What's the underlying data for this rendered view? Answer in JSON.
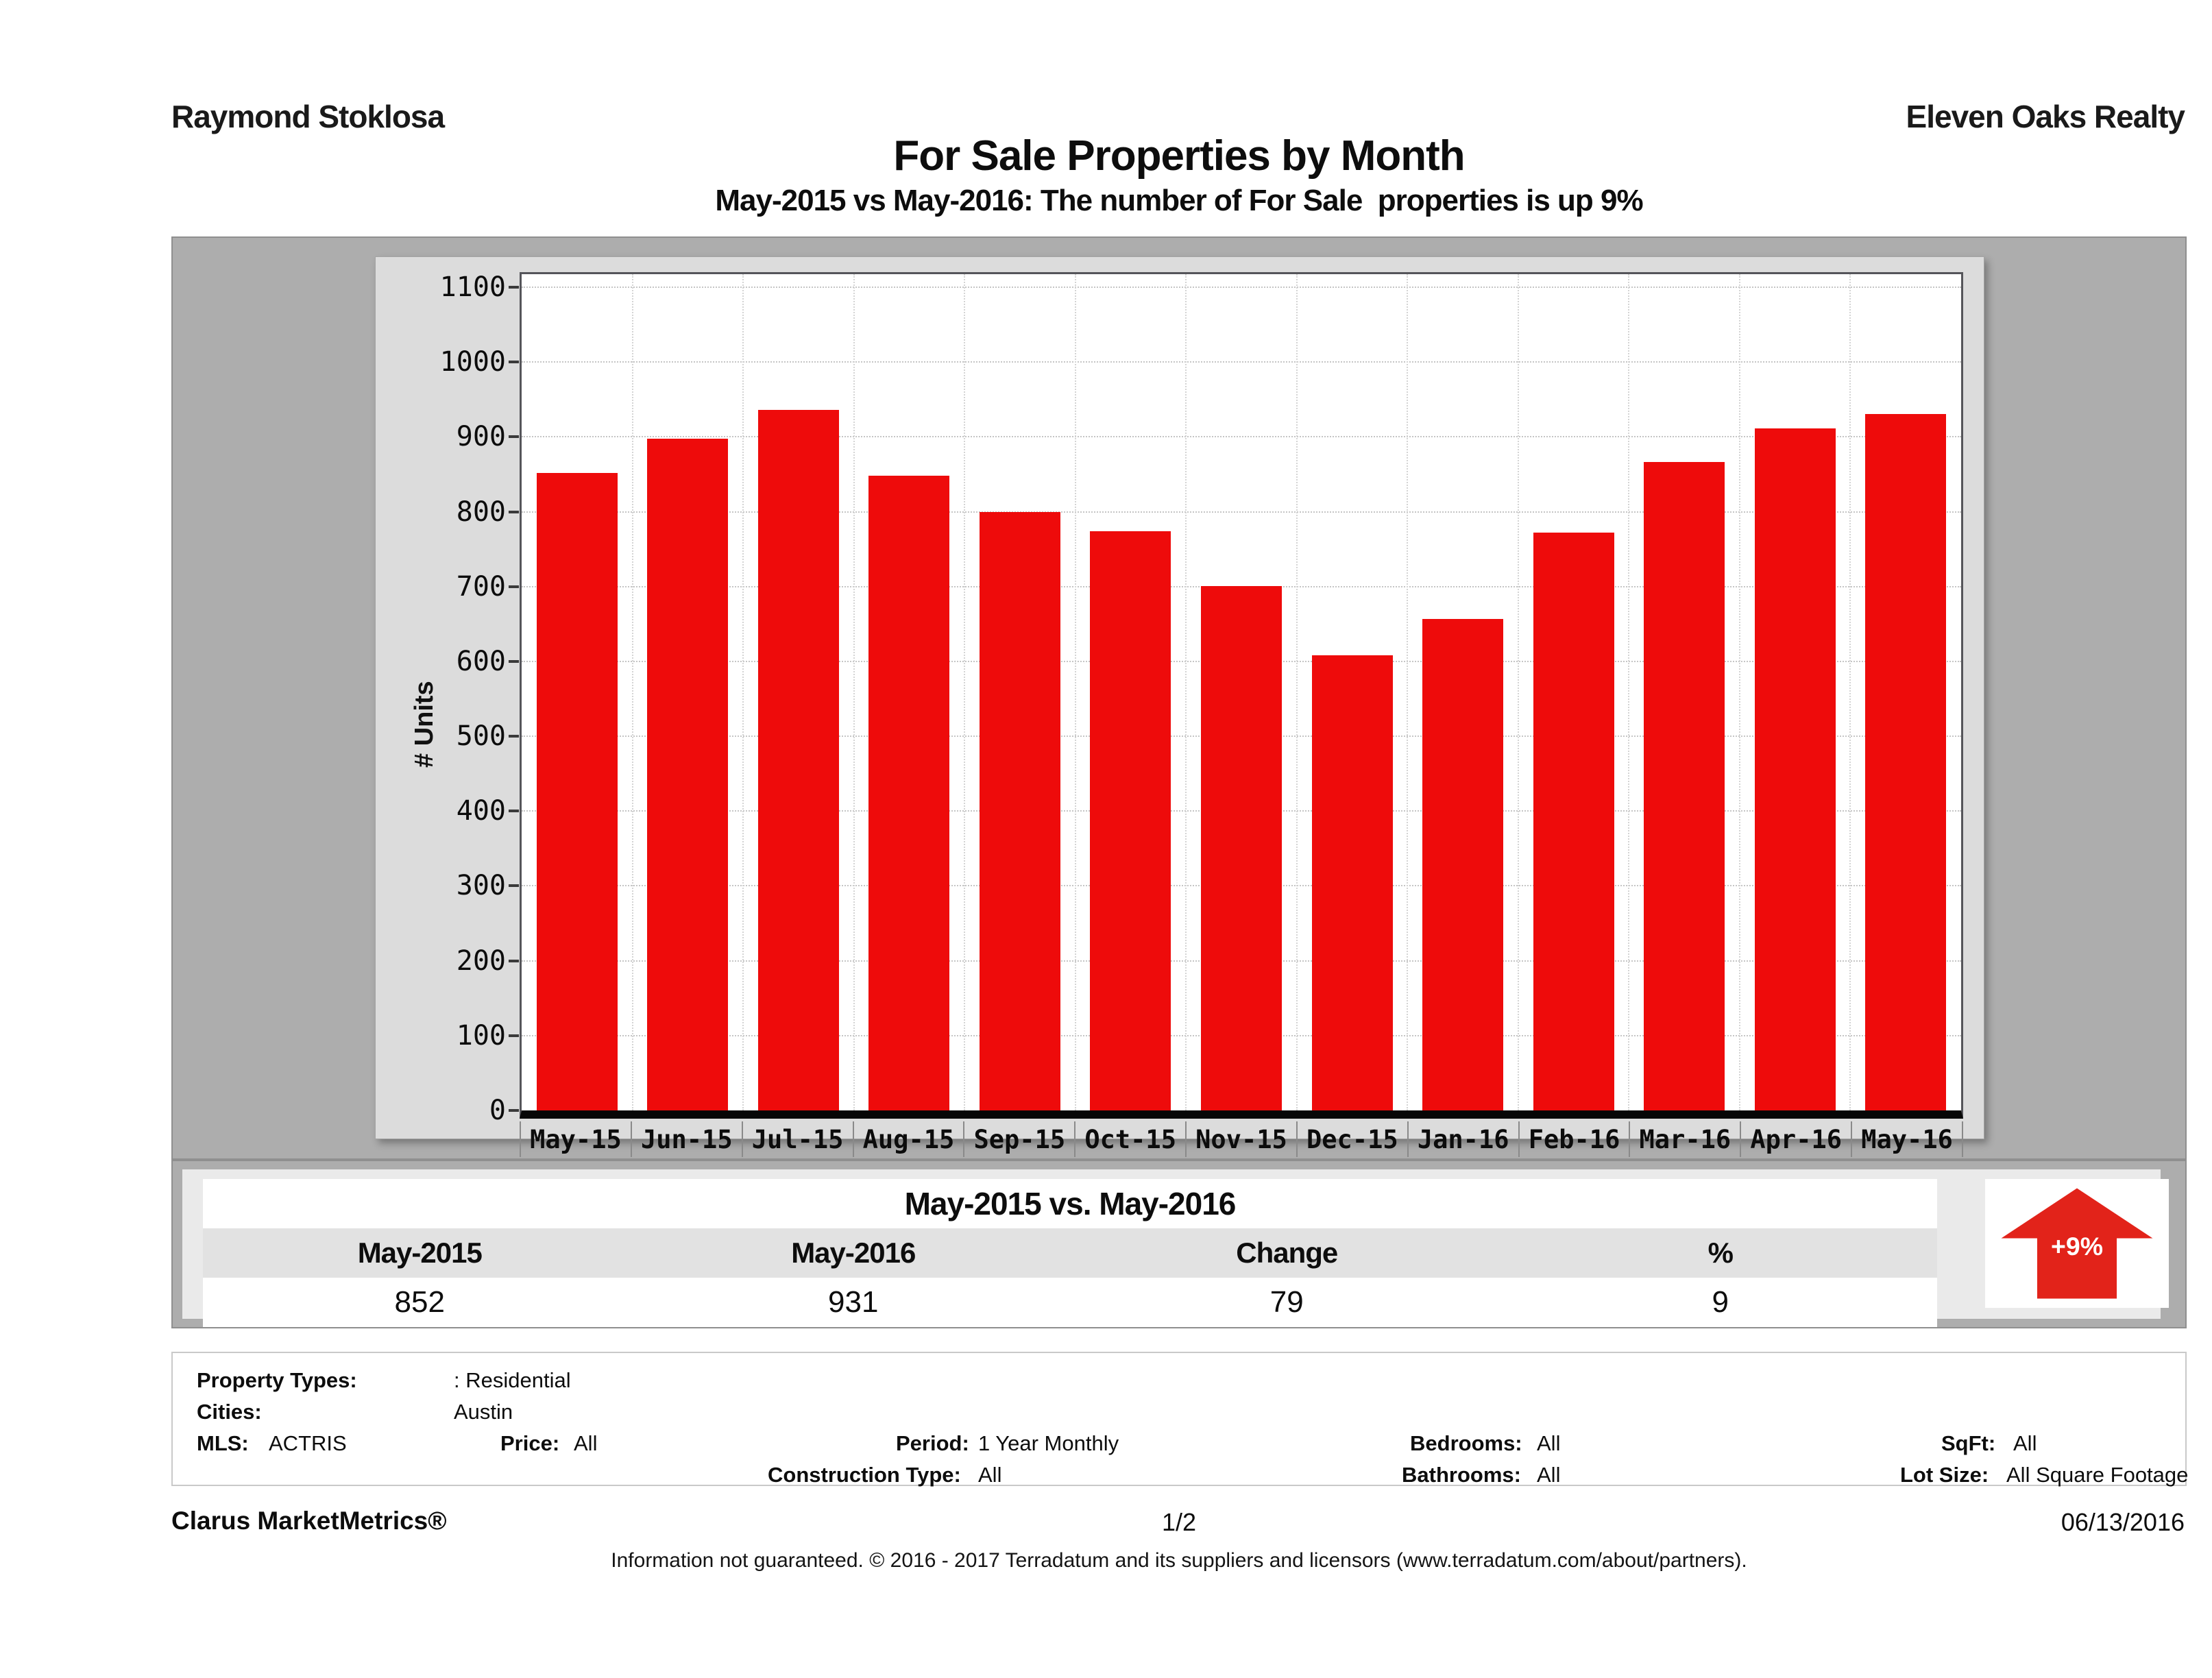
{
  "header": {
    "agent_name": "Raymond Stoklosa",
    "company_name": "Eleven Oaks Realty",
    "title": "For Sale Properties by Month",
    "subtitle": "May-2015 vs May-2016: The number of For Sale  properties is up 9%"
  },
  "chart_data": {
    "type": "bar",
    "title": "For Sale Properties by Month",
    "categories": [
      "May-15",
      "Jun-15",
      "Jul-15",
      "Aug-15",
      "Sep-15",
      "Oct-15",
      "Nov-15",
      "Dec-15",
      "Jan-16",
      "Feb-16",
      "Mar-16",
      "Apr-16",
      "May-16"
    ],
    "values": [
      852,
      898,
      936,
      848,
      800,
      774,
      701,
      608,
      657,
      772,
      866,
      911,
      931
    ],
    "xlabel": "",
    "ylabel": "# Units",
    "ylim": [
      0,
      1100
    ],
    "ytick_step": 100,
    "grid": true,
    "legend_position": "none",
    "bar_color": "#ee0b0b",
    "plot_background": "#ffffff",
    "panel_background": "#dcdcdc"
  },
  "comparison": {
    "title": "May-2015 vs. May-2016",
    "columns": [
      "May-2015",
      "May-2016",
      "Change",
      "%"
    ],
    "values": [
      "852",
      "931",
      "79",
      "9"
    ],
    "badge_label": "+9%",
    "badge_color": "#e2231a"
  },
  "filters": {
    "property_types": {
      "label": "Property Types:",
      "value": ": Residential"
    },
    "cities": {
      "label": "Cities:",
      "value": "Austin"
    },
    "mls": {
      "label": "MLS:",
      "value": "ACTRIS"
    },
    "price": {
      "label": "Price:",
      "value": "All"
    },
    "period": {
      "label": "Period:",
      "value": "1 Year Monthly"
    },
    "construction": {
      "label": "Construction Type:",
      "value": "All"
    },
    "bedrooms": {
      "label": "Bedrooms:",
      "value": "All"
    },
    "bathrooms": {
      "label": "Bathrooms:",
      "value": "All"
    },
    "sqft": {
      "label": "SqFt:",
      "value": "All"
    },
    "lot_size": {
      "label": "Lot Size:",
      "value": "All Square Footage"
    }
  },
  "footer": {
    "product": "Clarus MarketMetrics®",
    "page_number": "1/2",
    "date": "06/13/2016",
    "disclaimer": "Information not guaranteed. © 2016 - 2017 Terradatum and its suppliers and licensors (www.terradatum.com/about/partners)."
  }
}
